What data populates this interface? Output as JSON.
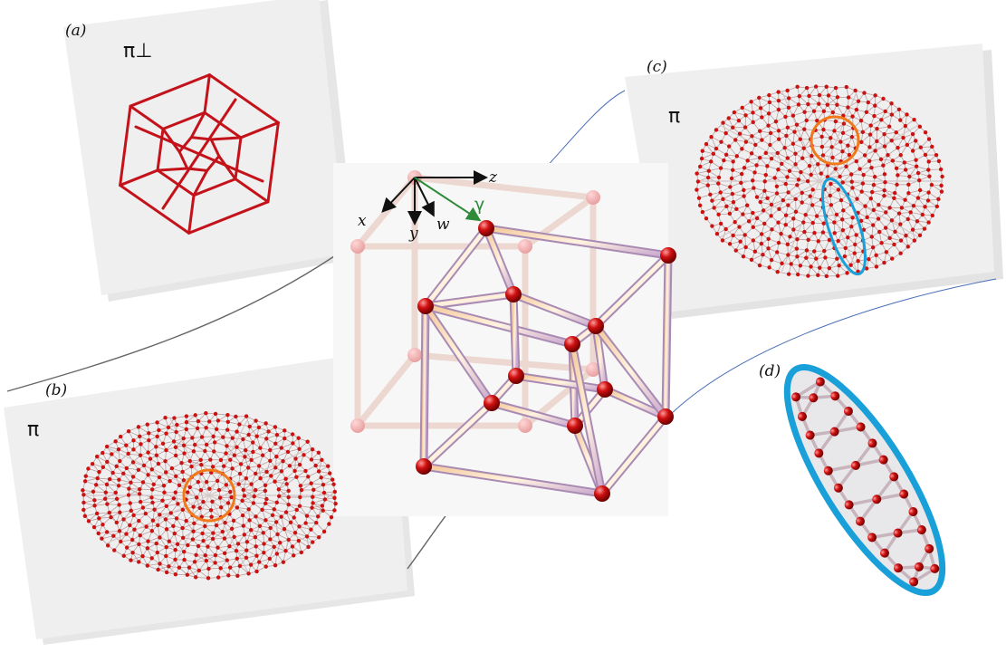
{
  "panels": {
    "a": {
      "label": "(a)",
      "title": "π⊥"
    },
    "b": {
      "label": "(b)",
      "title": "π"
    },
    "c": {
      "label": "(c)",
      "title": "π"
    },
    "d": {
      "label": "(d)"
    }
  },
  "axes": {
    "x": "x",
    "y": "y",
    "w": "w",
    "z": "z",
    "gamma": "γ"
  },
  "colors": {
    "node": "#cc1111",
    "edge_red": "#c4121a",
    "highlight_orange": "#f07a1a",
    "highlight_blue": "#1aa0d8",
    "gamma_green": "#2e8b3a",
    "panel_bg": "#efefef"
  }
}
